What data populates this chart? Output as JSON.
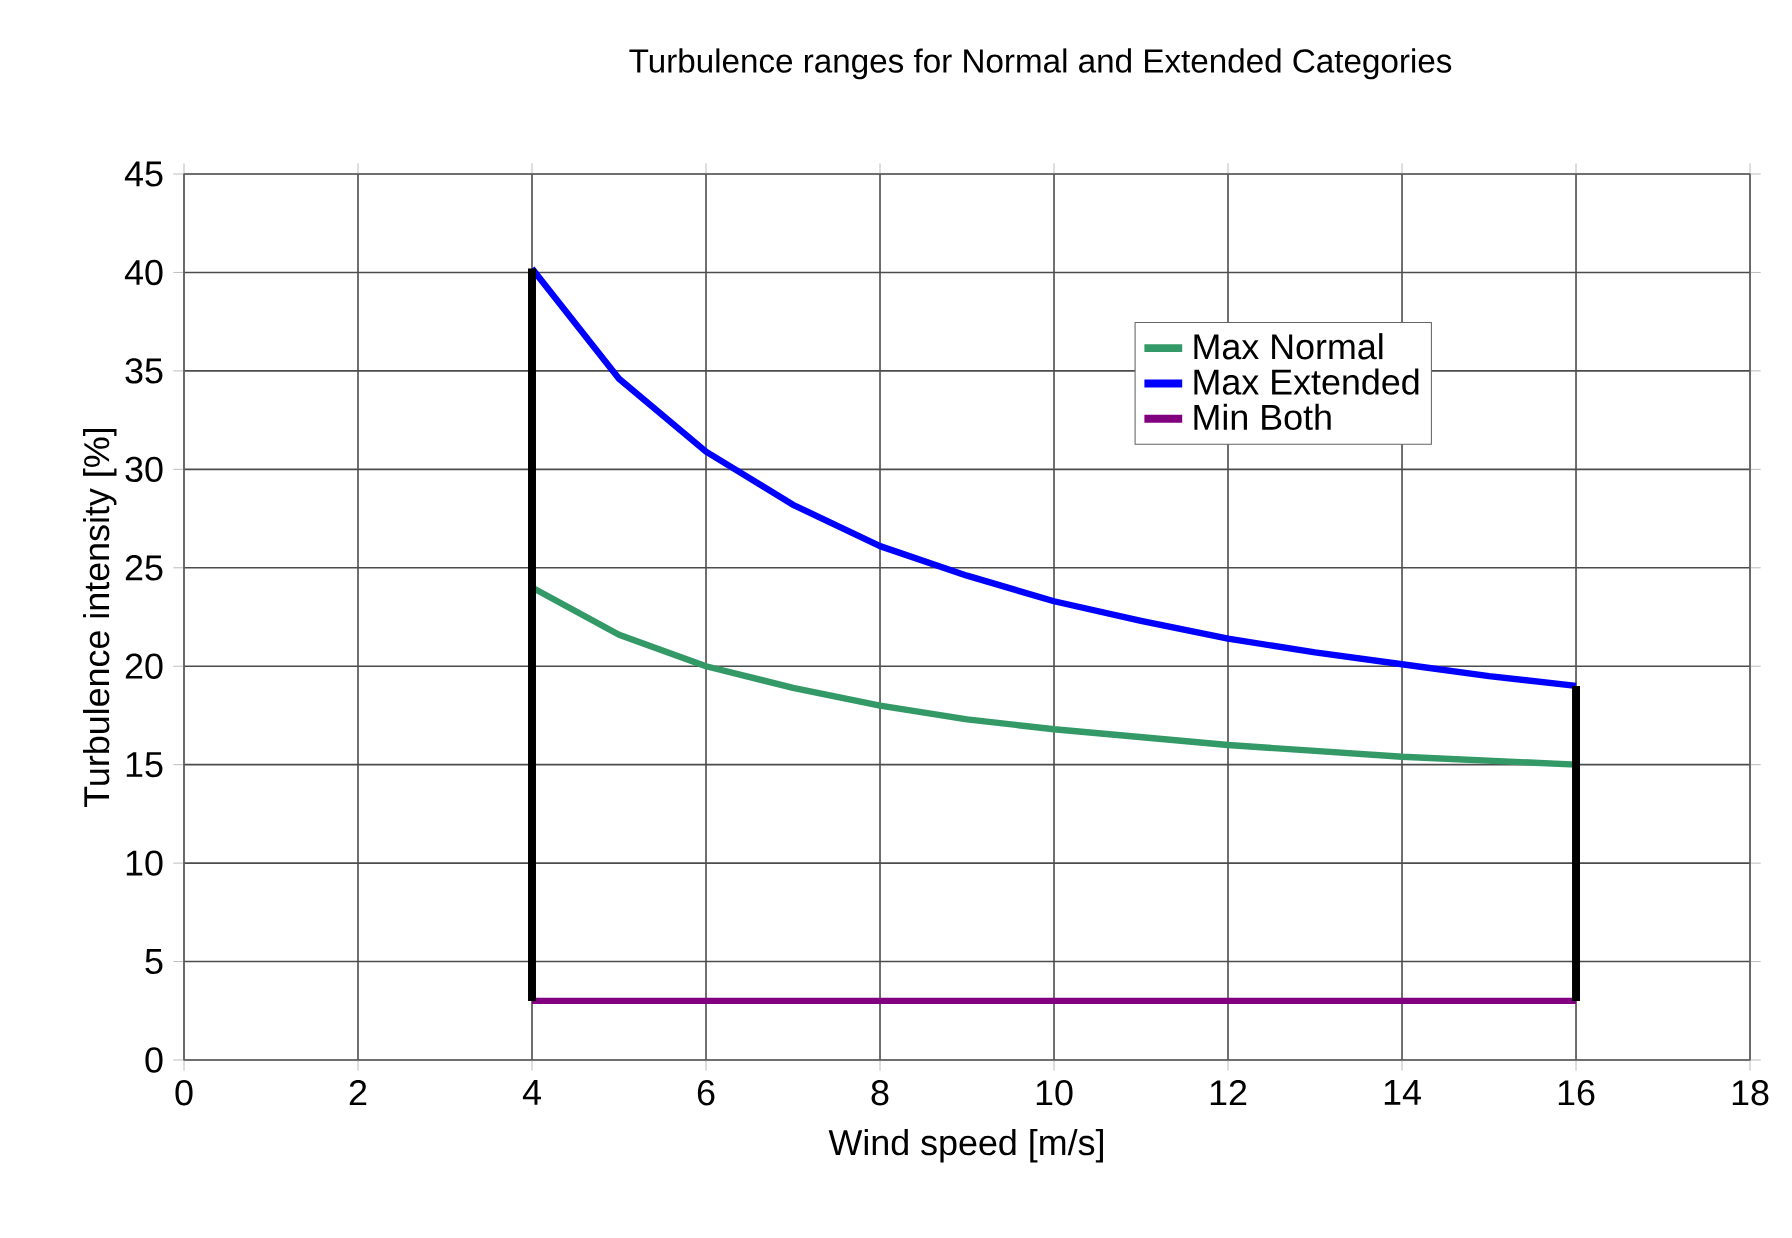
{
  "chart_data": {
    "type": "line",
    "title": "Turbulence ranges for Normal and Extended Categories",
    "xlabel": "Wind speed [m/s]",
    "ylabel": "Turbulence intensity [%]",
    "xlim": [
      0,
      18
    ],
    "xticks": [
      0,
      2,
      4,
      6,
      8,
      10,
      12,
      14,
      16,
      18
    ],
    "ylim": [
      0,
      45
    ],
    "yticks": [
      0,
      5,
      10,
      15,
      20,
      25,
      30,
      35,
      40,
      45
    ],
    "grid": true,
    "legend": "top right",
    "marker": "none",
    "line_style": "solid",
    "series": [
      {
        "name": "Max Normal",
        "color": "#339966",
        "x": [
          4,
          5,
          6,
          7,
          8,
          9,
          10,
          11,
          12,
          13,
          14,
          15,
          16
        ],
        "values": [
          24,
          21.6,
          20,
          18.9,
          18,
          17.3,
          16.8,
          16.4,
          16,
          15.7,
          15.4,
          15.2,
          15
        ]
      },
      {
        "name": "Max Extended",
        "color": "#0000ff",
        "x": [
          4,
          5,
          6,
          7,
          8,
          9,
          10,
          11,
          12,
          13,
          14,
          15,
          16
        ],
        "values": [
          40.2,
          34.6,
          30.9,
          28.2,
          26.1,
          24.6,
          23.3,
          22.3,
          21.4,
          20.7,
          20.1,
          19.5,
          19
        ]
      },
      {
        "name": "Min Both",
        "color": "#800080",
        "x": [
          4,
          16
        ],
        "values": [
          3,
          3
        ]
      },
      {
        "color": "#000000",
        "x": [
          4,
          4
        ],
        "values": [
          3,
          40.2
        ]
      },
      {
        "color": "#000000",
        "x": [
          16,
          16
        ],
        "values": [
          3,
          19
        ]
      }
    ]
  }
}
